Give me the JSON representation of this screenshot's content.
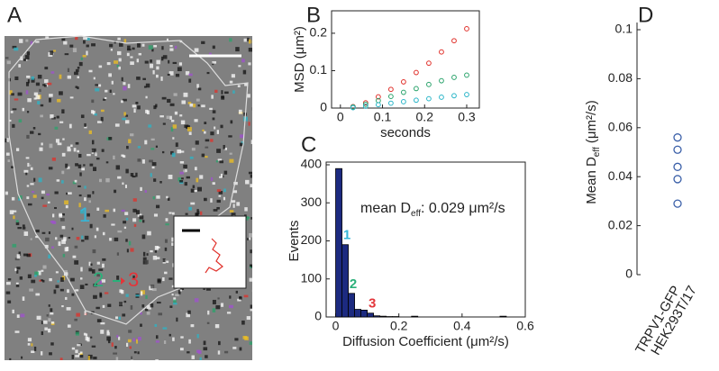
{
  "panel_labels": [
    "A",
    "B",
    "C",
    "D"
  ],
  "image_labels": [
    {
      "text": "1",
      "color": "#35b6d8"
    },
    {
      "text": "2",
      "color": "#2bb07a"
    },
    {
      "text": "3",
      "color": "#e3353a"
    }
  ],
  "chart_data": [
    {
      "type": "scatter",
      "xlabel": "seconds",
      "ylabel": "MSD (μm²)",
      "x": [
        0.03,
        0.06,
        0.09,
        0.12,
        0.15,
        0.18,
        0.21,
        0.24,
        0.27,
        0.3
      ],
      "series": [
        {
          "color": "#e0302a",
          "values": [
            0.004,
            0.014,
            0.03,
            0.05,
            0.07,
            0.095,
            0.12,
            0.15,
            0.18,
            0.212
          ]
        },
        {
          "color": "#2aa36b",
          "values": [
            0.003,
            0.01,
            0.02,
            0.031,
            0.042,
            0.052,
            0.063,
            0.073,
            0.082,
            0.088
          ]
        },
        {
          "color": "#2ab5c8",
          "values": [
            0.001,
            0.005,
            0.009,
            0.013,
            0.017,
            0.021,
            0.025,
            0.029,
            0.033,
            0.036
          ]
        }
      ],
      "xlim": [
        -0.021,
        0.33
      ],
      "xticks": [
        0,
        0.1,
        0.2,
        0.3
      ],
      "ylim": [
        0,
        0.26
      ],
      "yticks": [
        0,
        0.1,
        0.2
      ]
    },
    {
      "type": "histogram",
      "xlabel": "Diffusion Coefficient (μm²/s)",
      "ylabel": "Events",
      "annotation": [
        "mean D",
        "eff",
        ": 0.029 μm²/s"
      ],
      "bins": [
        0,
        0.02,
        0.04,
        0.06,
        0.08,
        0.1,
        0.12,
        0.14,
        0.16,
        0.18,
        0.2,
        0.22,
        0.24,
        0.26,
        0.28,
        0.3,
        0.32,
        0.34,
        0.36,
        0.38,
        0.4,
        0.42,
        0.44,
        0.46,
        0.48,
        0.5,
        0.52,
        0.54,
        0.56,
        0.58,
        0.6
      ],
      "values": [
        390,
        190,
        62,
        20,
        18,
        10,
        3,
        2,
        1,
        1,
        0,
        0,
        2,
        0,
        0,
        0,
        0,
        0,
        0,
        0,
        0,
        0,
        0,
        0,
        0,
        0,
        2,
        0,
        0,
        0
      ],
      "color": "#1c2a80",
      "bar_labels": [
        {
          "text": "1",
          "bin": 1,
          "color": "#35b6d8"
        },
        {
          "text": "2",
          "bin": 2,
          "color": "#2bb07a"
        },
        {
          "text": "3",
          "bin": 5,
          "color": "#e3353a"
        }
      ],
      "xlim": [
        -0.03,
        0.6
      ],
      "xticks": [
        0,
        0.2,
        0.4,
        0.6
      ],
      "ylim": [
        0,
        400
      ],
      "yticks": [
        0,
        100,
        200,
        300,
        400
      ]
    },
    {
      "type": "strip",
      "ylabel": [
        "Mean D",
        "eff",
        " (μm²/s)"
      ],
      "category_lines": [
        "TRPV1-GFP",
        "HEK293T/17"
      ],
      "values": [
        0.029,
        0.039,
        0.044,
        0.051,
        0.056
      ],
      "color": "#3a5fa8",
      "ylim": [
        0,
        0.1
      ],
      "yticks": [
        0,
        0.02,
        0.04,
        0.06,
        0.08,
        0.1
      ]
    }
  ]
}
